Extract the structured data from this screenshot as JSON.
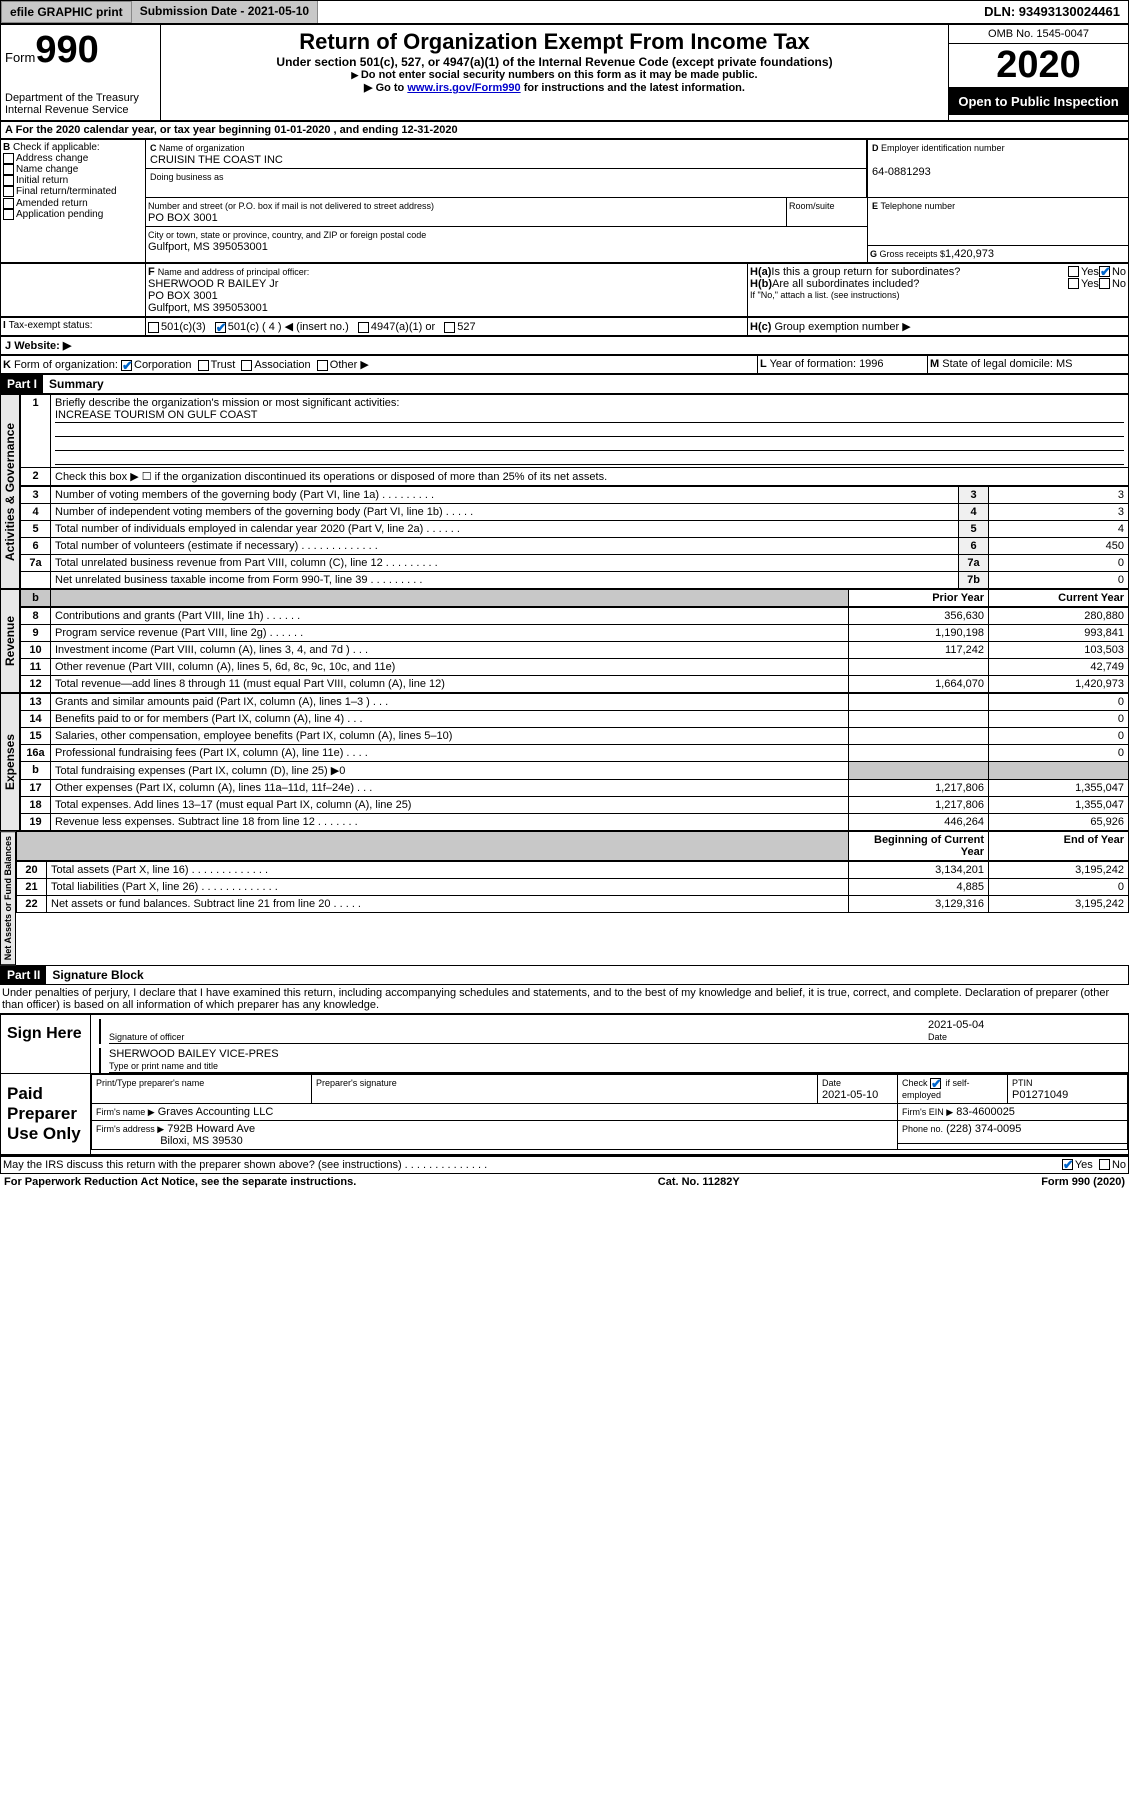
{
  "topbar": {
    "efile": "efile GRAPHIC print",
    "sub_label": "Submission Date - 2021-05-10",
    "dln": "DLN: 93493130024461"
  },
  "header": {
    "form_label": "Form",
    "form_num": "990",
    "dept1": "Department of the Treasury",
    "dept2": "Internal Revenue Service",
    "title": "Return of Organization Exempt From Income Tax",
    "subtitle": "Under section 501(c), 527, or 4947(a)(1) of the Internal Revenue Code (except private foundations)",
    "instr1": "Do not enter social security numbers on this form as it may be made public.",
    "instr2_pre": "Go to ",
    "instr2_link": "www.irs.gov/Form990",
    "instr2_post": " for instructions and the latest information.",
    "omb": "OMB No. 1545-0047",
    "year": "2020",
    "open_public": "Open to Public Inspection"
  },
  "rowA": "For the 2020 calendar year, or tax year beginning 01-01-2020   , and ending 12-31-2020",
  "boxB": {
    "label": "Check if applicable:",
    "o1": "Address change",
    "o2": "Name change",
    "o3": "Initial return",
    "o4": "Final return/terminated",
    "o5": "Amended return",
    "o6": "Application pending"
  },
  "boxC": {
    "name_label": "Name of organization",
    "name": "CRUISIN THE COAST INC",
    "dba_label": "Doing business as",
    "street_label": "Number and street (or P.O. box if mail is not delivered to street address)",
    "room_label": "Room/suite",
    "street": "PO BOX 3001",
    "city_label": "City or town, state or province, country, and ZIP or foreign postal code",
    "city": "Gulfport, MS  395053001"
  },
  "boxD": {
    "label": "Employer identification number",
    "val": "64-0881293"
  },
  "boxE": {
    "label": "Telephone number"
  },
  "boxG": {
    "label": "Gross receipts $",
    "val": "1,420,973"
  },
  "boxF": {
    "label": "Name and address of principal officer:",
    "l1": "SHERWOOD R BAILEY Jr",
    "l2": "PO BOX 3001",
    "l3": "Gulfport, MS  395053001"
  },
  "boxH": {
    "a_label": "Is this a group return for subordinates?",
    "b_label": "Are all subordinates included?",
    "note": "If \"No,\" attach a list. (see instructions)",
    "c_label": "Group exemption number ▶",
    "yes": "Yes",
    "no": "No"
  },
  "taxExempt": {
    "label": "Tax-exempt status:",
    "o1": "501(c)(3)",
    "o2": "501(c) ( 4 ) ◀ (insert no.)",
    "o3": "4947(a)(1) or",
    "o4": "527"
  },
  "boxJ": {
    "label": "Website: ▶"
  },
  "boxK": {
    "label": "Form of organization:",
    "o1": "Corporation",
    "o2": "Trust",
    "o3": "Association",
    "o4": "Other ▶"
  },
  "boxL": {
    "label": "Year of formation:",
    "val": "1996"
  },
  "boxM": {
    "label": "State of legal domicile:",
    "val": "MS"
  },
  "part1": {
    "header": "Part I",
    "title": "Summary",
    "l1": "Briefly describe the organization's mission or most significant activities:",
    "l1v": "INCREASE TOURISM ON GULF COAST",
    "l2": "Check this box ▶ ☐  if the organization discontinued its operations or disposed of more than 25% of its net assets.",
    "rows": [
      {
        "n": "3",
        "t": "Number of voting members of the governing body (Part VI, line 1a)   .    .    .    .    .    .    .    .    .",
        "k": "3",
        "v": "3"
      },
      {
        "n": "4",
        "t": "Number of independent voting members of the governing body (Part VI, line 1b)   .    .    .    .    .",
        "k": "4",
        "v": "3"
      },
      {
        "n": "5",
        "t": "Total number of individuals employed in calendar year 2020 (Part V, line 2a)   .    .    .    .    .    .",
        "k": "5",
        "v": "4"
      },
      {
        "n": "6",
        "t": "Total number of volunteers (estimate if necessary)   .    .    .    .    .    .    .    .    .    .    .    .    .",
        "k": "6",
        "v": "450"
      },
      {
        "n": "7a",
        "t": "Total unrelated business revenue from Part VIII, column (C), line 12   .    .    .    .    .    .    .    .    .",
        "k": "7a",
        "v": "0"
      },
      {
        "n": "",
        "t": "Net unrelated business taxable income from Form 990-T, line 39    .    .    .    .    .    .    .    .    .",
        "k": "7b",
        "v": "0"
      }
    ],
    "col_prior": "Prior Year",
    "col_current": "Current Year",
    "col_begin": "Beginning of Current Year",
    "col_end": "End of Year",
    "revenue": [
      {
        "n": "8",
        "t": "Contributions and grants (Part VIII, line 1h)    .    .    .    .    .    .",
        "p": "356,630",
        "c": "280,880"
      },
      {
        "n": "9",
        "t": "Program service revenue (Part VIII, line 2g)    .    .    .    .    .    .",
        "p": "1,190,198",
        "c": "993,841"
      },
      {
        "n": "10",
        "t": "Investment income (Part VIII, column (A), lines 3, 4, and 7d )   .    .    .",
        "p": "117,242",
        "c": "103,503"
      },
      {
        "n": "11",
        "t": "Other revenue (Part VIII, column (A), lines 5, 6d, 8c, 9c, 10c, and 11e)",
        "p": "",
        "c": "42,749"
      },
      {
        "n": "12",
        "t": "Total revenue—add lines 8 through 11 (must equal Part VIII, column (A), line 12)",
        "p": "1,664,070",
        "c": "1,420,973"
      }
    ],
    "expenses": [
      {
        "n": "13",
        "t": "Grants and similar amounts paid (Part IX, column (A), lines 1–3 )   .    .    .",
        "p": "",
        "c": "0"
      },
      {
        "n": "14",
        "t": "Benefits paid to or for members (Part IX, column (A), line 4)   .    .    .",
        "p": "",
        "c": "0"
      },
      {
        "n": "15",
        "t": "Salaries, other compensation, employee benefits (Part IX, column (A), lines 5–10)",
        "p": "",
        "c": "0"
      },
      {
        "n": "16a",
        "t": "Professional fundraising fees (Part IX, column (A), line 11e)   .    .    .    .",
        "p": "",
        "c": "0"
      },
      {
        "n": "b",
        "t": "Total fundraising expenses (Part IX, column (D), line 25) ▶0",
        "p": "gray",
        "c": "gray"
      },
      {
        "n": "17",
        "t": "Other expenses (Part IX, column (A), lines 11a–11d, 11f–24e)   .    .    .",
        "p": "1,217,806",
        "c": "1,355,047"
      },
      {
        "n": "18",
        "t": "Total expenses. Add lines 13–17 (must equal Part IX, column (A), line 25)",
        "p": "1,217,806",
        "c": "1,355,047"
      },
      {
        "n": "19",
        "t": "Revenue less expenses. Subtract line 18 from line 12   .    .    .    .    .    .    .",
        "p": "446,264",
        "c": "65,926"
      }
    ],
    "netassets": [
      {
        "n": "20",
        "t": "Total assets (Part X, line 16)    .    .    .    .    .    .    .    .    .    .    .    .    .",
        "p": "3,134,201",
        "c": "3,195,242"
      },
      {
        "n": "21",
        "t": "Total liabilities (Part X, line 26)   .    .    .    .    .    .    .    .    .    .    .    .    .",
        "p": "4,885",
        "c": "0"
      },
      {
        "n": "22",
        "t": "Net assets or fund balances. Subtract line 21 from line 20   .    .    .    .    .",
        "p": "3,129,316",
        "c": "3,195,242"
      }
    ],
    "vlabels": {
      "gov": "Activities & Governance",
      "rev": "Revenue",
      "exp": "Expenses",
      "net": "Net Assets or Fund Balances"
    }
  },
  "part2": {
    "header": "Part II",
    "title": "Signature Block",
    "perjury": "Under penalties of perjury, I declare that I have examined this return, including accompanying schedules and statements, and to the best of my knowledge and belief, it is true, correct, and complete. Declaration of preparer (other than officer) is based on all information of which preparer has any knowledge.",
    "sign_here": "Sign Here",
    "sig_officer": "Signature of officer",
    "date_label": "Date",
    "date_val": "2021-05-04",
    "type_name": "Type or print name and title",
    "officer_name": "SHERWOOD BAILEY VICE-PRES",
    "paid_prep": "Paid Preparer Use Only",
    "prep_name_label": "Print/Type preparer's name",
    "prep_sig_label": "Preparer's signature",
    "prep_date_label": "Date",
    "prep_date": "2021-05-10",
    "check_self": "Check ☑ if self-employed",
    "ptin_label": "PTIN",
    "ptin": "P01271049",
    "firm_name_label": "Firm's name   ▶",
    "firm_name": "Graves Accounting LLC",
    "firm_ein_label": "Firm's EIN ▶",
    "firm_ein": "83-4600025",
    "firm_addr_label": "Firm's address ▶",
    "firm_addr1": "792B Howard Ave",
    "firm_addr2": "Biloxi, MS  39530",
    "phone_label": "Phone no.",
    "phone": "(228) 374-0095",
    "discuss": "May the IRS discuss this return with the preparer shown above? (see instructions)    .    .    .    .    .    .    .    .    .    .    .    .    .    .",
    "yes": "Yes",
    "no": "No"
  },
  "footer": {
    "pra": "For Paperwork Reduction Act Notice, see the separate instructions.",
    "cat": "Cat. No. 11282Y",
    "form": "Form 990 (2020)"
  }
}
